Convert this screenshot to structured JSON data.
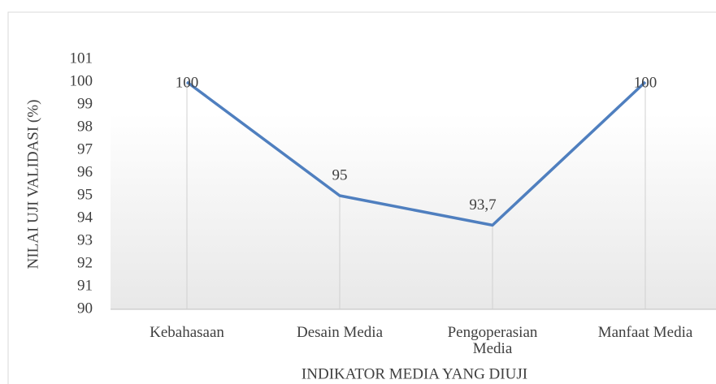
{
  "chart_data": {
    "type": "line",
    "categories": [
      "Kebahasaan",
      "Desain Media",
      "Pengoperasian Media",
      "Manfaat Media"
    ],
    "series": [
      {
        "name": null,
        "color": "#4f7fbf",
        "values": [
          100,
          95,
          93.7,
          100
        ],
        "value_labels": [
          "100",
          "95",
          "93,7",
          "100"
        ]
      }
    ],
    "xlabel": "INDIKATOR MEDIA YANG DIUJI",
    "ylabel": "NILAI UJI VALIDASI (%)",
    "ylim": [
      90,
      101
    ],
    "yticks": [
      90,
      91,
      92,
      93,
      94,
      95,
      96,
      97,
      98,
      99,
      100,
      101
    ],
    "drop_lines": true
  }
}
